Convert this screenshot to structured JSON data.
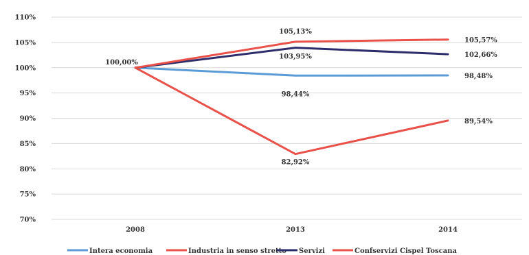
{
  "chart_data": {
    "type": "line",
    "categories": [
      "2008",
      "2013",
      "2014"
    ],
    "ylim": [
      70,
      110
    ],
    "y_ticks": [
      "110%",
      "105%",
      "100%",
      "95%",
      "90%",
      "85%",
      "80%",
      "75%",
      "70%"
    ],
    "grid": true,
    "legend_position": "bottom",
    "series": [
      {
        "name": "Intera economia",
        "color": "#5b9bd5",
        "values": [
          100.0,
          98.44,
          98.48
        ],
        "labels": [
          "",
          "98,44%",
          "98,48%"
        ]
      },
      {
        "name": "Industria in senso stretto",
        "color": "#e8524a",
        "values": [
          100.0,
          82.92,
          89.54
        ],
        "labels": [
          "",
          "82,92%",
          "89,54%"
        ]
      },
      {
        "name": "Servizi",
        "color": "#2e2d6b",
        "values": [
          100.0,
          103.95,
          102.66
        ],
        "labels": [
          "100,00%",
          "103,95%",
          "102,66%"
        ]
      },
      {
        "name": "Confservizi Cispel Toscana",
        "color": "#e8524a",
        "values": [
          100.0,
          105.13,
          105.57
        ],
        "labels": [
          "",
          "105,13%",
          "105,57%"
        ]
      }
    ]
  }
}
